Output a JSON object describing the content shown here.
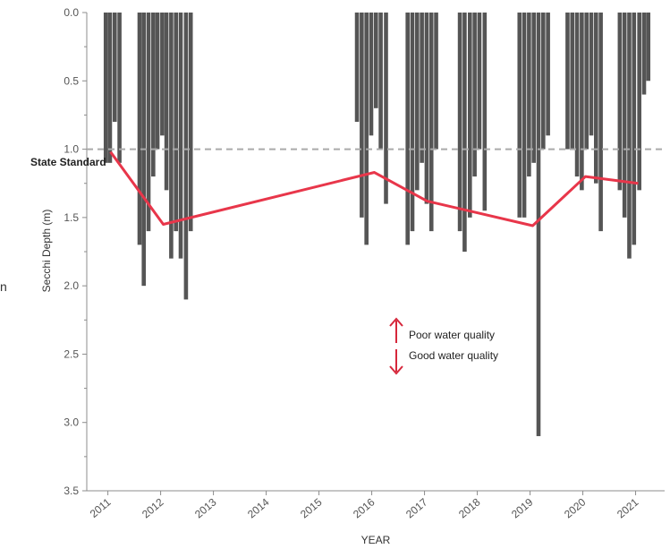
{
  "chart_data": {
    "type": "bar",
    "title": "",
    "xlabel": "YEAR",
    "ylabel": "Secchi Depth (m)",
    "y_inverted": true,
    "ylim": [
      0,
      3.5
    ],
    "xlim": [
      2010.6,
      2021.55
    ],
    "y_ticks": [
      "0.0",
      "0.5",
      "1.0",
      "1.5",
      "2.0",
      "2.5",
      "3.0",
      "3.5"
    ],
    "y_tick_values": [
      0,
      0.5,
      1.0,
      1.5,
      2.0,
      2.5,
      3.0,
      3.5
    ],
    "x_ticks": [
      "2011",
      "2012",
      "2013",
      "2014",
      "2015",
      "2016",
      "2017",
      "2018",
      "2019",
      "2020",
      "2021"
    ],
    "x_tick_values": [
      2011,
      2012,
      2013,
      2014,
      2015,
      2016,
      2017,
      2018,
      2019,
      2020,
      2021
    ],
    "grid": false,
    "series": [
      {
        "kind": "bar",
        "color": "#555555",
        "points": [
          {
            "x": 2010.96,
            "y": 1.1
          },
          {
            "x": 2011.04,
            "y": 1.1
          },
          {
            "x": 2011.13,
            "y": 0.8
          },
          {
            "x": 2011.22,
            "y": 1.1
          },
          {
            "x": 2011.6,
            "y": 1.7
          },
          {
            "x": 2011.68,
            "y": 2.0
          },
          {
            "x": 2011.77,
            "y": 1.6
          },
          {
            "x": 2011.86,
            "y": 1.2
          },
          {
            "x": 2011.94,
            "y": 1.0
          },
          {
            "x": 2012.03,
            "y": 0.9
          },
          {
            "x": 2012.11,
            "y": 1.3
          },
          {
            "x": 2012.2,
            "y": 1.8
          },
          {
            "x": 2012.29,
            "y": 1.6
          },
          {
            "x": 2012.38,
            "y": 1.8
          },
          {
            "x": 2012.48,
            "y": 2.1
          },
          {
            "x": 2012.57,
            "y": 1.6
          },
          {
            "x": 2015.72,
            "y": 0.8
          },
          {
            "x": 2015.81,
            "y": 1.5
          },
          {
            "x": 2015.9,
            "y": 1.7
          },
          {
            "x": 2015.99,
            "y": 0.9
          },
          {
            "x": 2016.08,
            "y": 0.7
          },
          {
            "x": 2016.17,
            "y": 1.0
          },
          {
            "x": 2016.27,
            "y": 1.4
          },
          {
            "x": 2016.68,
            "y": 1.7
          },
          {
            "x": 2016.77,
            "y": 1.6
          },
          {
            "x": 2016.86,
            "y": 1.3
          },
          {
            "x": 2016.95,
            "y": 1.1
          },
          {
            "x": 2017.04,
            "y": 1.4
          },
          {
            "x": 2017.13,
            "y": 1.6
          },
          {
            "x": 2017.22,
            "y": 1.0
          },
          {
            "x": 2017.67,
            "y": 1.6
          },
          {
            "x": 2017.76,
            "y": 1.75
          },
          {
            "x": 2017.86,
            "y": 1.5
          },
          {
            "x": 2017.95,
            "y": 1.2
          },
          {
            "x": 2018.04,
            "y": 1.0
          },
          {
            "x": 2018.14,
            "y": 1.45
          },
          {
            "x": 2018.8,
            "y": 1.5
          },
          {
            "x": 2018.89,
            "y": 1.5
          },
          {
            "x": 2018.98,
            "y": 1.2
          },
          {
            "x": 2019.07,
            "y": 1.1
          },
          {
            "x": 2019.16,
            "y": 3.1
          },
          {
            "x": 2019.25,
            "y": 1.0
          },
          {
            "x": 2019.34,
            "y": 0.9
          },
          {
            "x": 2019.71,
            "y": 1.0
          },
          {
            "x": 2019.8,
            "y": 1.0
          },
          {
            "x": 2019.89,
            "y": 1.2
          },
          {
            "x": 2019.98,
            "y": 1.3
          },
          {
            "x": 2020.07,
            "y": 1.0
          },
          {
            "x": 2020.16,
            "y": 0.9
          },
          {
            "x": 2020.25,
            "y": 1.25
          },
          {
            "x": 2020.34,
            "y": 1.6
          },
          {
            "x": 2020.7,
            "y": 1.3
          },
          {
            "x": 2020.79,
            "y": 1.5
          },
          {
            "x": 2020.88,
            "y": 1.8
          },
          {
            "x": 2020.97,
            "y": 1.7
          },
          {
            "x": 2021.07,
            "y": 1.3
          },
          {
            "x": 2021.16,
            "y": 0.6
          },
          {
            "x": 2021.24,
            "y": 0.5
          }
        ]
      },
      {
        "kind": "line",
        "color": "#e8364a",
        "points": [
          {
            "x": 2011.05,
            "y": 1.02
          },
          {
            "x": 2012.05,
            "y": 1.55
          },
          {
            "x": 2016.05,
            "y": 1.17
          },
          {
            "x": 2017.05,
            "y": 1.38
          },
          {
            "x": 2019.05,
            "y": 1.56
          },
          {
            "x": 2020.05,
            "y": 1.2
          },
          {
            "x": 2021.05,
            "y": 1.25
          }
        ]
      }
    ],
    "reference_line": {
      "y": 1.0,
      "label": "State Standard",
      "color": "#aaaaaa"
    },
    "annotations": {
      "up": "Poor water quality",
      "down": "Good water quality",
      "arrow_color": "#d6273b"
    }
  },
  "stray_text": "n"
}
